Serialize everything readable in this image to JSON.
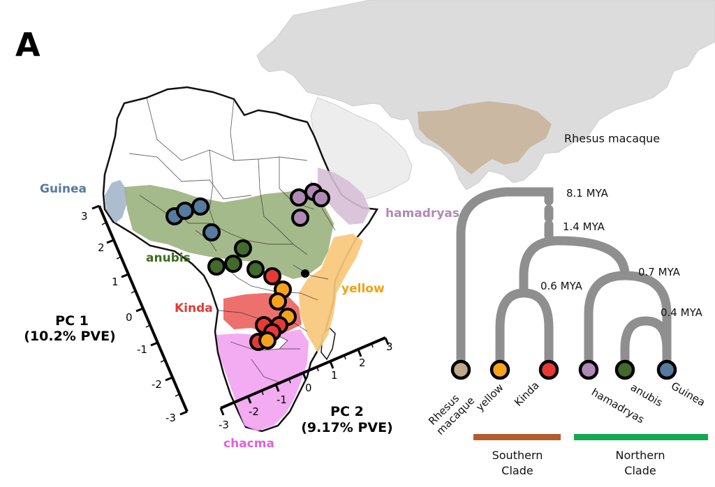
{
  "panel_label": "A",
  "colors": {
    "guinea": "#567aa0",
    "anubis": "#436a2c",
    "kinda": "#e63a35",
    "yellow": "#f6a21c",
    "hamadryas": "#b08ab6",
    "chacma": "#e35fe0",
    "rhesus": "#bfa98d",
    "southern_clade": "#b35d2e",
    "northern_clade": "#13a84f"
  },
  "map": {
    "region_labels": {
      "guinea": "Guinea",
      "anubis": "anubis",
      "kinda": "Kinda",
      "yellow": "yellow",
      "hamadryas": "hamadryas",
      "chacma": "chacma",
      "rhesus": "Rhesus macaque"
    },
    "pc1": {
      "title": "PC 1",
      "pve": "(10.2% PVE)",
      "ticks": [
        "3",
        "2",
        "1",
        "0",
        "-1",
        "-2",
        "-3"
      ]
    },
    "pc2": {
      "title": "PC 2",
      "pve": "(9.17% PVE)",
      "ticks": [
        "-3",
        "-2",
        "-1",
        "0",
        "1",
        "2",
        "3"
      ]
    }
  },
  "tree": {
    "divergence_times": [
      "8.1 MYA",
      "1.4 MYA",
      "0.7 MYA",
      "0.6 MYA",
      "0.4 MYA"
    ],
    "tips": [
      {
        "label": "Rhesus macaque",
        "line1": "Rhesus",
        "line2": "macaque",
        "color": "#bfa98d"
      },
      {
        "label": "yellow",
        "line1": "yellow",
        "line2": "",
        "color": "#f6a21c"
      },
      {
        "label": "Kinda",
        "line1": "Kinda",
        "line2": "",
        "color": "#e63a35"
      },
      {
        "label": "hamadryas",
        "line1": "hamadryas",
        "line2": "",
        "color": "#b08ab6"
      },
      {
        "label": "anubis",
        "line1": "anubis",
        "line2": "",
        "color": "#436a2c"
      },
      {
        "label": "Guinea",
        "line1": "Guinea",
        "line2": "",
        "color": "#567aa0"
      }
    ],
    "clades": {
      "southern": {
        "line1": "Southern",
        "line2": "Clade"
      },
      "northern": {
        "line1": "Northern",
        "line2": "Clade"
      }
    }
  }
}
